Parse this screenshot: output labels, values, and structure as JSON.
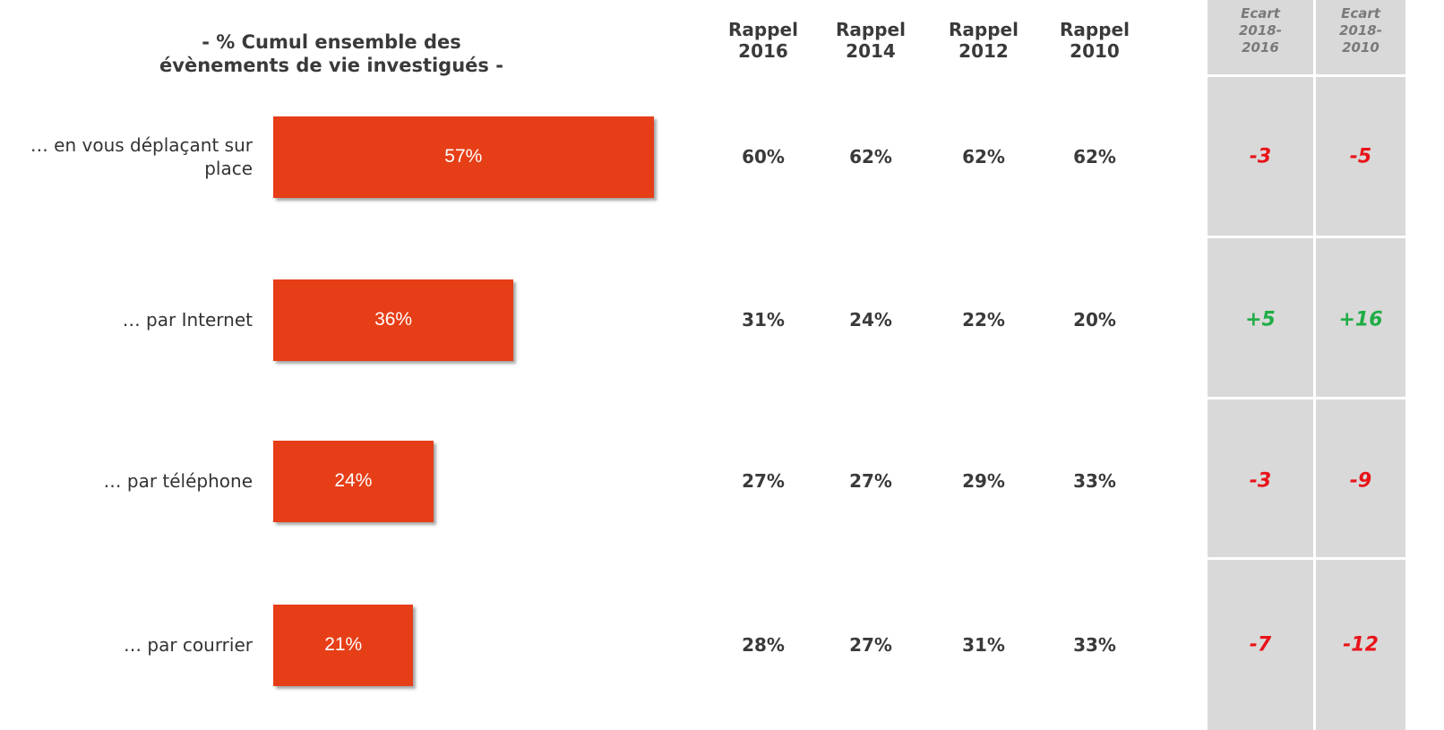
{
  "chart_data": {
    "type": "bar",
    "orientation": "horizontal",
    "title": "- % Cumul ensemble des évènements de vie investigués -",
    "categories": [
      "… en vous déplaçant sur place",
      "… par Internet",
      "… par téléphone",
      "… par courrier"
    ],
    "values": [
      57,
      36,
      24,
      21
    ],
    "value_labels": [
      "57%",
      "36%",
      "24%",
      "21%"
    ],
    "color": "#e63e17"
  },
  "table": {
    "columns": [
      "Rappel 2016",
      "Rappel 2014",
      "Rappel 2012",
      "Rappel 2010"
    ],
    "rows": [
      [
        "60%",
        "62%",
        "62%",
        "62%"
      ],
      [
        "31%",
        "24%",
        "22%",
        "20%"
      ],
      [
        "27%",
        "27%",
        "29%",
        "33%"
      ],
      [
        "28%",
        "27%",
        "31%",
        "33%"
      ]
    ]
  },
  "ecart": {
    "columns": [
      "Ecart 2018-2016",
      "Ecart 2018-2010"
    ],
    "rows": [
      [
        "-3",
        "-5"
      ],
      [
        "+5",
        "+16"
      ],
      [
        "-3",
        "-9"
      ],
      [
        "-7",
        "-12"
      ]
    ]
  }
}
